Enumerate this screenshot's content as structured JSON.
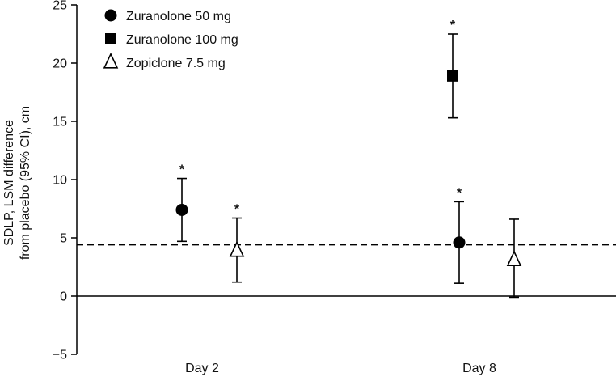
{
  "chart_data": {
    "type": "scatter",
    "title": "",
    "ylabel_line1": "SDLP, LSM difference",
    "ylabel_line2": "from placebo (95% CI), cm",
    "xlabel": "",
    "categories": [
      "Day 2",
      "Day 8"
    ],
    "ylim": [
      -5,
      25
    ],
    "yticks": [
      -5,
      0,
      5,
      10,
      15,
      20,
      25
    ],
    "ytick_labels": [
      "−5",
      "0",
      "5",
      "10",
      "15",
      "20",
      "25"
    ],
    "grid": false,
    "legend_position": "top-left",
    "reference_line": {
      "y": 4.4,
      "style": "dashed"
    },
    "series": [
      {
        "name": "Zuranolone 50 mg",
        "marker": "circle-filled",
        "points": [
          {
            "x": "Day 2",
            "y": 7.4,
            "ci_low": 4.7,
            "ci_high": 10.1,
            "significant": true
          },
          {
            "x": "Day 8",
            "y": 4.6,
            "ci_low": 1.1,
            "ci_high": 8.1,
            "significant": true
          }
        ]
      },
      {
        "name": "Zuranolone 100 mg",
        "marker": "square-filled",
        "points": [
          {
            "x": "Day 8",
            "y": 18.9,
            "ci_low": 15.3,
            "ci_high": 22.5,
            "significant": true
          }
        ]
      },
      {
        "name": "Zopiclone 7.5 mg",
        "marker": "triangle-open",
        "points": [
          {
            "x": "Day 2",
            "y": 3.9,
            "ci_low": 1.2,
            "ci_high": 6.7,
            "significant": true
          },
          {
            "x": "Day 8",
            "y": 3.1,
            "ci_low": -0.1,
            "ci_high": 6.6,
            "significant": false
          }
        ]
      }
    ],
    "significance_marker": "*"
  }
}
